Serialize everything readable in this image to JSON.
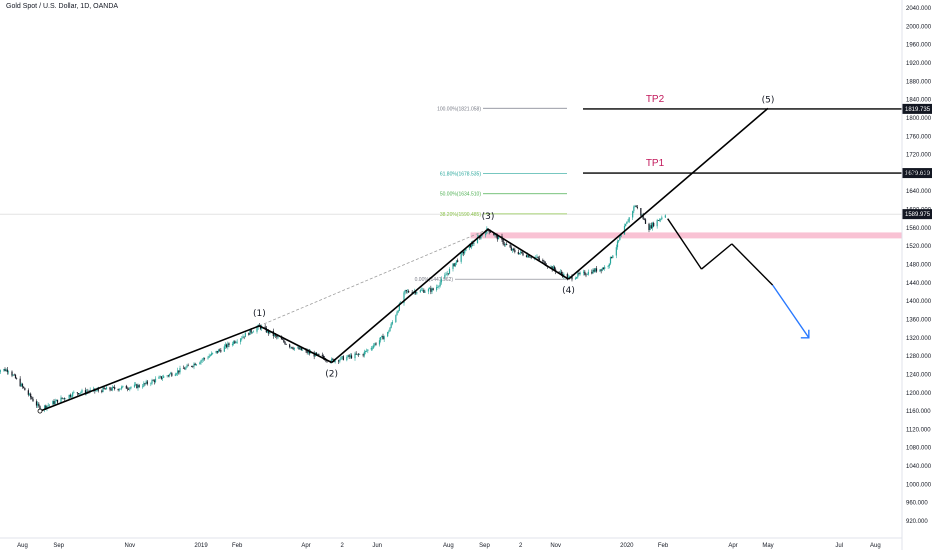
{
  "header": {
    "title": "Gold Spot / U.S. Dollar, 1D, OANDA"
  },
  "colors": {
    "candle_up": "#26a69a",
    "candle_down": "#131722",
    "wave": "#000000",
    "dashed": "#9e9e9e",
    "zone": "#f48fb1",
    "tp": "#c2185b",
    "fib_100": "#787b86",
    "fib_618": "#26a69a",
    "fib_50": "#4caf50",
    "fib_382": "#8bc34a",
    "fib_0": "#787b86",
    "arrow_blue": "#2979ff",
    "axis_text": "#131722"
  },
  "chart_data": {
    "type": "candlestick",
    "title": "Gold Spot / U.S. Dollar, 1D, OANDA",
    "x_tick_labels": [
      "Aug",
      "Sep",
      "Nov",
      "2019",
      "Feb",
      "Apr",
      "2",
      "Jun",
      "Aug",
      "Sep",
      "2",
      "Nov",
      "2020",
      "Feb",
      "Apr",
      "May",
      "Jul",
      "Aug"
    ],
    "y_tick_labels": [
      "2040.000",
      "2000.000",
      "1960.000",
      "1920.000",
      "1880.000",
      "1840.000",
      "1800.000",
      "1760.000",
      "1720.000",
      "1680.000",
      "1640.000",
      "1600.000",
      "1560.000",
      "1520.000",
      "1480.000",
      "1440.000",
      "1400.000",
      "1360.000",
      "1320.000",
      "1280.000",
      "1240.000",
      "1200.000",
      "1160.000",
      "1120.000",
      "1080.000",
      "1040.000",
      "1000.000",
      "960.000",
      "920.000"
    ],
    "ylim": [
      920,
      2040
    ],
    "price_path": [
      {
        "date": "2018-07-20",
        "price": 1250
      },
      {
        "date": "2018-08-16",
        "price": 1165
      },
      {
        "date": "2018-09-15",
        "price": 1200
      },
      {
        "date": "2018-11-10",
        "price": 1215
      },
      {
        "date": "2018-12-20",
        "price": 1255
      },
      {
        "date": "2019-01-15",
        "price": 1290
      },
      {
        "date": "2019-02-20",
        "price": 1345
      },
      {
        "date": "2019-03-20",
        "price": 1300
      },
      {
        "date": "2019-04-23",
        "price": 1270
      },
      {
        "date": "2019-05-20",
        "price": 1285
      },
      {
        "date": "2019-06-10",
        "price": 1330
      },
      {
        "date": "2019-06-25",
        "price": 1420
      },
      {
        "date": "2019-07-20",
        "price": 1425
      },
      {
        "date": "2019-08-15",
        "price": 1510
      },
      {
        "date": "2019-09-04",
        "price": 1557
      },
      {
        "date": "2019-09-25",
        "price": 1510
      },
      {
        "date": "2019-10-15",
        "price": 1495
      },
      {
        "date": "2019-11-12",
        "price": 1450
      },
      {
        "date": "2019-12-15",
        "price": 1475
      },
      {
        "date": "2020-01-08",
        "price": 1610
      },
      {
        "date": "2020-01-20",
        "price": 1560
      },
      {
        "date": "2020-02-03",
        "price": 1590
      }
    ],
    "waves": [
      {
        "label": "(1)",
        "date": "2019-02-20",
        "price": 1346
      },
      {
        "label": "(2)",
        "date": "2019-04-23",
        "price": 1266
      },
      {
        "label": "(3)",
        "date": "2019-09-04",
        "price": 1557
      },
      {
        "label": "(4)",
        "date": "2019-11-12",
        "price": 1448
      },
      {
        "label": "(5)",
        "date": "2020-05-01",
        "price": 1821
      }
    ],
    "wave_start": {
      "date": "2018-08-16",
      "price": 1160
    },
    "fibonacci": [
      {
        "label": "100.00%(1821.058)",
        "price": 1821.058
      },
      {
        "label": "61.80%(1678.535)",
        "price": 1678.535
      },
      {
        "label": "50.00%(1634.510)",
        "price": 1634.51
      },
      {
        "label": "38.20%(1590.485)",
        "price": 1590.485
      },
      {
        "label": "0.00%(1447.962)",
        "price": 1447.962
      }
    ],
    "targets": [
      {
        "label": "TP2",
        "price": 1819.735,
        "tag": "1819.735"
      },
      {
        "label": "TP1",
        "price": 1679.619,
        "tag": "1679.619"
      }
    ],
    "current_price": {
      "price": 1589.975,
      "tag": "1589.975"
    },
    "support_zone": {
      "low": 1537,
      "high": 1550
    },
    "projection_path": [
      {
        "date": "2020-02-05",
        "price": 1580
      },
      {
        "date": "2020-03-05",
        "price": 1470
      },
      {
        "date": "2020-03-31",
        "price": 1525
      },
      {
        "date": "2020-05-05",
        "price": 1435
      }
    ],
    "blue_arrow": [
      {
        "date": "2020-05-05",
        "price": 1435
      },
      {
        "date": "2020-06-05",
        "price": 1320
      }
    ]
  }
}
